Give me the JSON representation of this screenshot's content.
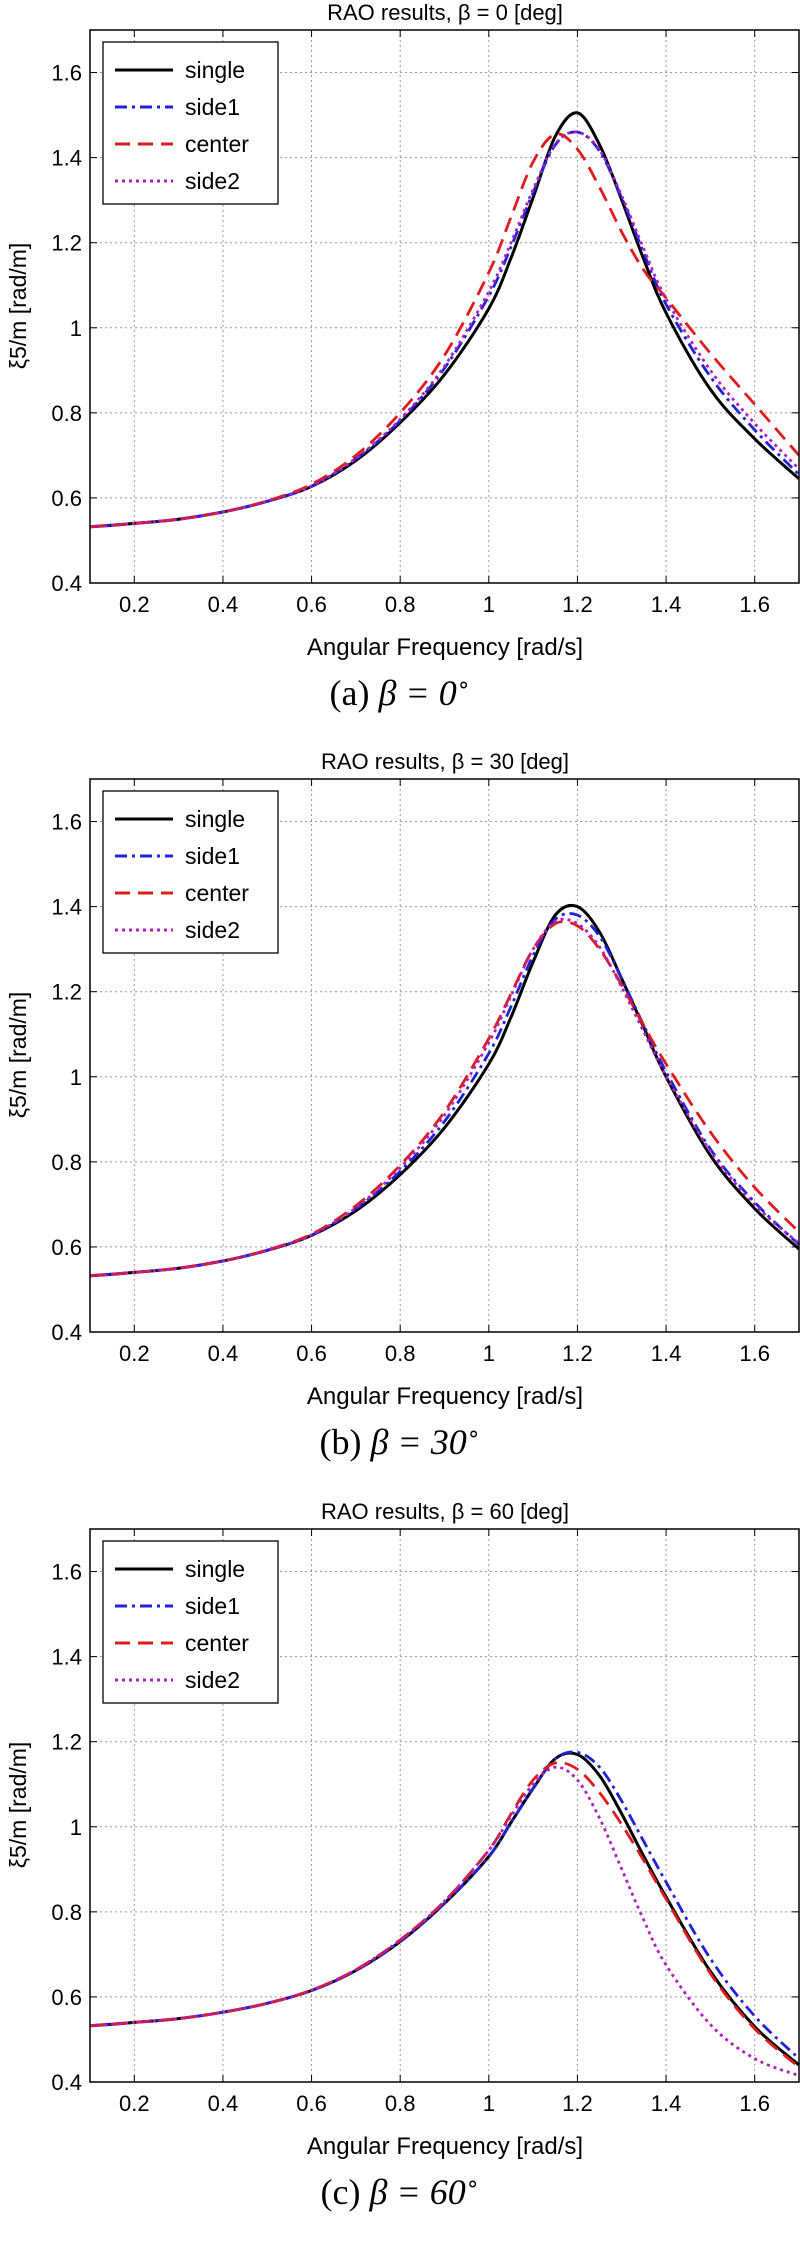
{
  "chart_data": [
    {
      "type": "line",
      "title": "RAO results,  β = 0 [deg]",
      "xlabel": "Angular Frequency [rad/s]",
      "ylabel": "ξ5/m [rad/m]",
      "xlim": [
        0.1,
        1.7
      ],
      "ylim": [
        0.4,
        1.7
      ],
      "xticks": [
        "0.2",
        "0.4",
        "0.6",
        "0.8",
        "1",
        "1.2",
        "1.4",
        "1.6"
      ],
      "yticks": [
        "0.4",
        "0.6",
        "0.8",
        "1",
        "1.2",
        "1.4",
        "1.6"
      ],
      "grid": true,
      "legend_position": "top-left",
      "caption_label": "(a)",
      "caption_math": "β = 0",
      "caption_unit": "∘",
      "series": [
        {
          "name": "single",
          "color": "#000000",
          "dash": "solid",
          "x": [
            0.1,
            0.2,
            0.3,
            0.4,
            0.5,
            0.6,
            0.7,
            0.8,
            0.9,
            1.0,
            1.05,
            1.1,
            1.15,
            1.2,
            1.25,
            1.3,
            1.35,
            1.4,
            1.5,
            1.6,
            1.7
          ],
          "y": [
            0.532,
            0.54,
            0.55,
            0.567,
            0.592,
            0.627,
            0.688,
            0.777,
            0.89,
            1.045,
            1.164,
            1.306,
            1.45,
            1.505,
            1.43,
            1.3,
            1.16,
            1.035,
            0.855,
            0.739,
            0.645
          ]
        },
        {
          "name": "side1",
          "color": "#1f22d6",
          "dash": "dashdot",
          "x": [
            0.1,
            0.2,
            0.3,
            0.4,
            0.5,
            0.6,
            0.7,
            0.8,
            0.9,
            1.0,
            1.05,
            1.1,
            1.15,
            1.2,
            1.25,
            1.3,
            1.35,
            1.4,
            1.5,
            1.6,
            1.7
          ],
          "y": [
            0.532,
            0.54,
            0.55,
            0.567,
            0.592,
            0.628,
            0.692,
            0.782,
            0.905,
            1.075,
            1.19,
            1.318,
            1.43,
            1.46,
            1.415,
            1.305,
            1.175,
            1.055,
            0.885,
            0.76,
            0.655
          ]
        },
        {
          "name": "center",
          "color": "#e01b1b",
          "dash": "dashed",
          "x": [
            0.1,
            0.2,
            0.3,
            0.4,
            0.5,
            0.6,
            0.7,
            0.8,
            0.9,
            1.0,
            1.05,
            1.1,
            1.15,
            1.2,
            1.25,
            1.3,
            1.35,
            1.4,
            1.5,
            1.6,
            1.7
          ],
          "y": [
            0.532,
            0.54,
            0.55,
            0.567,
            0.593,
            0.632,
            0.7,
            0.8,
            0.935,
            1.13,
            1.26,
            1.39,
            1.455,
            1.42,
            1.33,
            1.225,
            1.135,
            1.07,
            0.94,
            0.82,
            0.7
          ]
        },
        {
          "name": "side2",
          "color": "#b01fc0",
          "dash": "dotted",
          "x": [
            0.1,
            0.2,
            0.3,
            0.4,
            0.5,
            0.6,
            0.7,
            0.8,
            0.9,
            1.0,
            1.05,
            1.1,
            1.15,
            1.2,
            1.25,
            1.3,
            1.35,
            1.4,
            1.5,
            1.6,
            1.7
          ],
          "y": [
            0.532,
            0.54,
            0.55,
            0.567,
            0.592,
            0.628,
            0.693,
            0.785,
            0.91,
            1.085,
            1.2,
            1.325,
            1.432,
            1.46,
            1.418,
            1.31,
            1.185,
            1.068,
            0.9,
            0.775,
            0.668
          ]
        }
      ]
    },
    {
      "type": "line",
      "title": "RAO results,  β = 30 [deg]",
      "xlabel": "Angular Frequency [rad/s]",
      "ylabel": "ξ5/m [rad/m]",
      "xlim": [
        0.1,
        1.7
      ],
      "ylim": [
        0.4,
        1.7
      ],
      "xticks": [
        "0.2",
        "0.4",
        "0.6",
        "0.8",
        "1",
        "1.2",
        "1.4",
        "1.6"
      ],
      "yticks": [
        "0.4",
        "0.6",
        "0.8",
        "1",
        "1.2",
        "1.4",
        "1.6"
      ],
      "grid": true,
      "legend_position": "top-left",
      "caption_label": "(b)",
      "caption_math": "β = 30",
      "caption_unit": "∘",
      "series": [
        {
          "name": "single",
          "color": "#000000",
          "dash": "solid",
          "x": [
            0.1,
            0.2,
            0.3,
            0.4,
            0.5,
            0.6,
            0.7,
            0.8,
            0.9,
            1.0,
            1.05,
            1.1,
            1.15,
            1.2,
            1.25,
            1.3,
            1.35,
            1.4,
            1.5,
            1.6,
            1.7
          ],
          "y": [
            0.532,
            0.54,
            0.55,
            0.567,
            0.592,
            0.627,
            0.685,
            0.77,
            0.88,
            1.03,
            1.14,
            1.27,
            1.38,
            1.4,
            1.34,
            1.23,
            1.115,
            1.0,
            0.815,
            0.69,
            0.595
          ]
        },
        {
          "name": "side1",
          "color": "#1f22d6",
          "dash": "dashdot",
          "x": [
            0.1,
            0.2,
            0.3,
            0.4,
            0.5,
            0.6,
            0.7,
            0.8,
            0.9,
            1.0,
            1.05,
            1.1,
            1.15,
            1.2,
            1.25,
            1.3,
            1.35,
            1.4,
            1.5,
            1.6,
            1.7
          ],
          "y": [
            0.532,
            0.54,
            0.55,
            0.567,
            0.592,
            0.628,
            0.69,
            0.778,
            0.895,
            1.055,
            1.165,
            1.285,
            1.37,
            1.38,
            1.33,
            1.23,
            1.12,
            1.012,
            0.83,
            0.705,
            0.605
          ]
        },
        {
          "name": "center",
          "color": "#e01b1b",
          "dash": "dashed",
          "x": [
            0.1,
            0.2,
            0.3,
            0.4,
            0.5,
            0.6,
            0.7,
            0.8,
            0.9,
            1.0,
            1.05,
            1.1,
            1.15,
            1.2,
            1.25,
            1.3,
            1.35,
            1.4,
            1.5,
            1.6,
            1.7
          ],
          "y": [
            0.532,
            0.54,
            0.55,
            0.567,
            0.593,
            0.63,
            0.697,
            0.792,
            0.918,
            1.09,
            1.195,
            1.3,
            1.36,
            1.355,
            1.3,
            1.215,
            1.12,
            1.03,
            0.87,
            0.74,
            0.635
          ]
        },
        {
          "name": "side2",
          "color": "#b01fc0",
          "dash": "dotted",
          "x": [
            0.1,
            0.2,
            0.3,
            0.4,
            0.5,
            0.6,
            0.7,
            0.8,
            0.9,
            1.0,
            1.05,
            1.1,
            1.15,
            1.2,
            1.25,
            1.3,
            1.35,
            1.4,
            1.5,
            1.6,
            1.7
          ],
          "y": [
            0.532,
            0.54,
            0.55,
            0.567,
            0.592,
            0.628,
            0.692,
            0.786,
            0.91,
            1.08,
            1.19,
            1.3,
            1.365,
            1.36,
            1.305,
            1.21,
            1.105,
            1.002,
            0.825,
            0.7,
            0.608
          ]
        }
      ]
    },
    {
      "type": "line",
      "title": "RAO results,  β = 60 [deg]",
      "xlabel": "Angular Frequency [rad/s]",
      "ylabel": "ξ5/m [rad/m]",
      "xlim": [
        0.1,
        1.7
      ],
      "ylim": [
        0.4,
        1.7
      ],
      "xticks": [
        "0.2",
        "0.4",
        "0.6",
        "0.8",
        "1",
        "1.2",
        "1.4",
        "1.6"
      ],
      "yticks": [
        "0.4",
        "0.6",
        "0.8",
        "1",
        "1.2",
        "1.4",
        "1.6"
      ],
      "grid": true,
      "legend_position": "top-left",
      "caption_label": "(c)",
      "caption_math": "β = 60",
      "caption_unit": "∘",
      "series": [
        {
          "name": "single",
          "color": "#000000",
          "dash": "solid",
          "x": [
            0.1,
            0.2,
            0.3,
            0.4,
            0.5,
            0.6,
            0.7,
            0.8,
            0.9,
            1.0,
            1.05,
            1.1,
            1.15,
            1.2,
            1.25,
            1.3,
            1.35,
            1.4,
            1.5,
            1.6,
            1.7
          ],
          "y": [
            0.532,
            0.54,
            0.549,
            0.564,
            0.585,
            0.615,
            0.662,
            0.73,
            0.82,
            0.93,
            1.01,
            1.09,
            1.16,
            1.17,
            1.12,
            1.03,
            0.93,
            0.835,
            0.66,
            0.53,
            0.44
          ]
        },
        {
          "name": "side1",
          "color": "#1f22d6",
          "dash": "dashdot",
          "x": [
            0.1,
            0.2,
            0.3,
            0.4,
            0.5,
            0.6,
            0.7,
            0.8,
            0.9,
            1.0,
            1.05,
            1.1,
            1.15,
            1.2,
            1.25,
            1.3,
            1.35,
            1.4,
            1.5,
            1.6,
            1.7
          ],
          "y": [
            0.532,
            0.54,
            0.549,
            0.564,
            0.585,
            0.615,
            0.662,
            0.73,
            0.82,
            0.93,
            1.01,
            1.09,
            1.16,
            1.175,
            1.14,
            1.06,
            0.965,
            0.87,
            0.69,
            0.555,
            0.455
          ]
        },
        {
          "name": "center",
          "color": "#e01b1b",
          "dash": "dashed",
          "x": [
            0.1,
            0.2,
            0.3,
            0.4,
            0.5,
            0.6,
            0.7,
            0.8,
            0.9,
            1.0,
            1.05,
            1.1,
            1.15,
            1.2,
            1.25,
            1.3,
            1.35,
            1.4,
            1.5,
            1.6,
            1.7
          ],
          "y": [
            0.532,
            0.54,
            0.549,
            0.564,
            0.585,
            0.616,
            0.664,
            0.734,
            0.825,
            0.945,
            1.03,
            1.11,
            1.15,
            1.135,
            1.08,
            1.005,
            0.92,
            0.83,
            0.655,
            0.525,
            0.435
          ]
        },
        {
          "name": "side2",
          "color": "#b01fc0",
          "dash": "dotted",
          "x": [
            0.1,
            0.2,
            0.3,
            0.4,
            0.5,
            0.6,
            0.7,
            0.8,
            0.9,
            1.0,
            1.05,
            1.1,
            1.15,
            1.2,
            1.25,
            1.3,
            1.35,
            1.4,
            1.5,
            1.6,
            1.7
          ],
          "y": [
            0.532,
            0.54,
            0.549,
            0.564,
            0.585,
            0.616,
            0.664,
            0.734,
            0.825,
            0.945,
            1.025,
            1.1,
            1.14,
            1.11,
            1.02,
            0.9,
            0.78,
            0.675,
            0.535,
            0.455,
            0.415
          ]
        }
      ]
    }
  ]
}
